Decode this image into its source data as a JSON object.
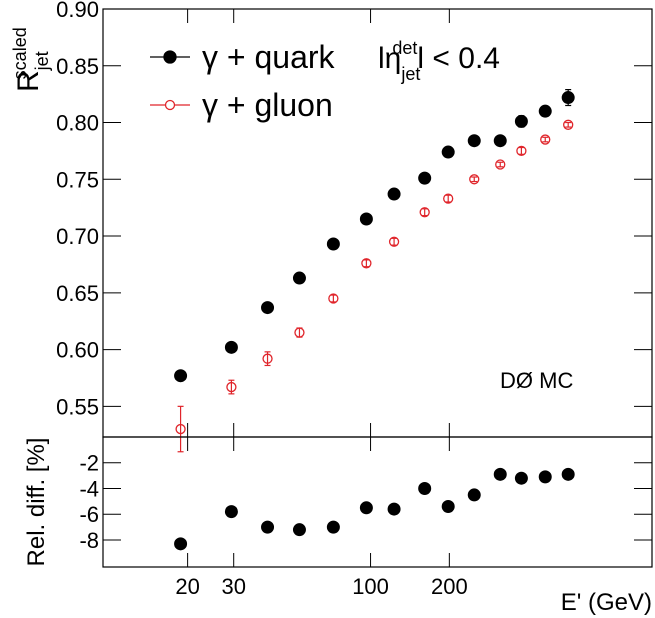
{
  "chart_data": [
    {
      "type": "scatter",
      "ylabel": {
        "main": "R",
        "sub": "jet",
        "sup": "scaled"
      },
      "annotation": {
        "prefix": "lη",
        "sub": "jet",
        "sup": "det",
        "suffix": "l < 0.4"
      },
      "note": "DØ MC",
      "xlim": [
        9.5,
        1200
      ],
      "log_x": true,
      "xticks": [
        20,
        30,
        100,
        200
      ],
      "ylim": [
        0.523,
        0.9
      ],
      "yticks": [
        {
          "value": 0.9,
          "label": "0.90"
        },
        0.85,
        {
          "value": 0.8,
          "label": "0.80"
        },
        0.75,
        {
          "value": 0.7,
          "label": "0.70"
        },
        0.65,
        {
          "value": 0.6,
          "label": "0.60"
        },
        0.55
      ],
      "x": [
        18.8,
        29.4,
        40.4,
        53.5,
        72.1,
        96.4,
        123,
        161,
        198,
        249,
        313,
        377,
        465,
        569
      ],
      "series": [
        {
          "name": "γ + quark",
          "color": "#000000",
          "marker": "filled",
          "values": [
            0.577,
            0.602,
            0.637,
            0.663,
            0.693,
            0.715,
            0.737,
            0.751,
            0.774,
            0.784,
            0.784,
            0.801,
            0.81,
            0.822
          ],
          "errors": [
            0.004,
            0.003,
            0.003,
            0.003,
            0.003,
            0.003,
            0.003,
            0.003,
            0.003,
            0.003,
            0.004,
            0.005,
            0.004,
            0.007
          ]
        },
        {
          "name": "γ + gluon",
          "color": "#e0252b",
          "marker": "open",
          "values": [
            0.53,
            0.567,
            0.592,
            0.615,
            0.645,
            0.676,
            0.695,
            0.721,
            0.733,
            0.75,
            0.763,
            0.775,
            0.785,
            0.798
          ],
          "errors": [
            0.02,
            0.006,
            0.006,
            0.004,
            0.003,
            0.003,
            0.003,
            0.003,
            0.003,
            0.002,
            0.002,
            0.003,
            0.002,
            0.002
          ]
        }
      ]
    },
    {
      "type": "scatter",
      "ylabel": "Rel. diff. [%]",
      "xlabel": "E' (GeV)",
      "xlim": [
        9.5,
        1200
      ],
      "log_x": true,
      "xticks": [
        20,
        30,
        100,
        200
      ],
      "ylim": [
        -10.1,
        0
      ],
      "yticks": [
        -2,
        -4,
        -6,
        -8
      ],
      "x": [
        18.8,
        29.4,
        40.4,
        53.5,
        72.1,
        96.4,
        123,
        161,
        198,
        249,
        313,
        377,
        465,
        569
      ],
      "series": [
        {
          "color": "#000000",
          "marker": "filled",
          "values": [
            -8.3,
            -5.8,
            -7.0,
            -7.2,
            -7.0,
            -5.5,
            -5.6,
            -4.0,
            -5.4,
            -4.5,
            -2.9,
            -3.2,
            -3.1,
            -2.9
          ]
        }
      ]
    }
  ]
}
